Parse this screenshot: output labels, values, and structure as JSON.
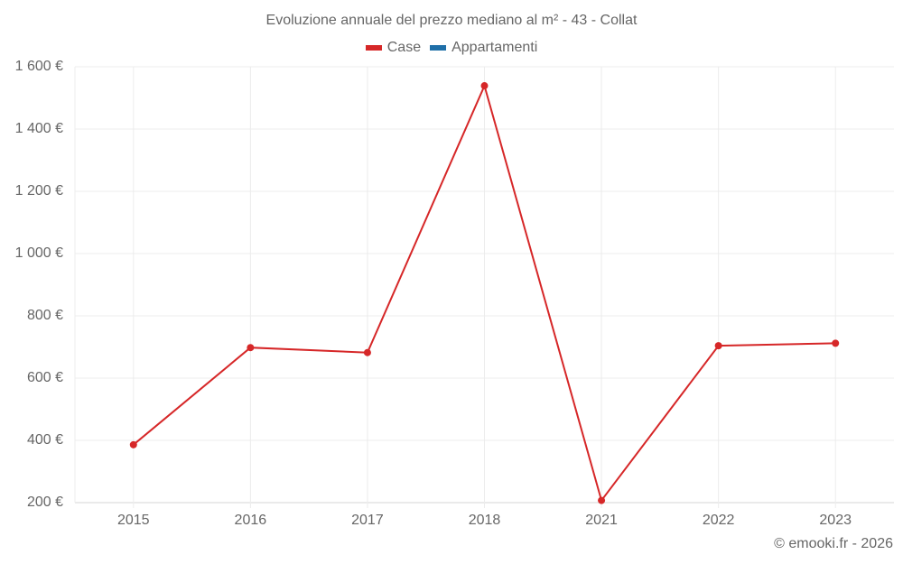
{
  "chart_data": {
    "type": "line",
    "title": "Evoluzione annuale del prezzo mediano al m² - 43 - Collat",
    "categories": [
      "2015",
      "2016",
      "2017",
      "2018",
      "2021",
      "2022",
      "2023"
    ],
    "series": [
      {
        "name": "Case",
        "color": "#d62728",
        "values": [
          386,
          698,
          682,
          1539,
          207,
          704,
          712
        ]
      },
      {
        "name": "Appartamenti",
        "color": "#1f6fa8",
        "values": []
      }
    ],
    "xlabel": "",
    "ylabel": "",
    "ylim": [
      200,
      1600
    ],
    "yticks": [
      200,
      400,
      600,
      800,
      1000,
      1200,
      1400,
      1600
    ],
    "ytick_labels": [
      "200 €",
      "400 €",
      "600 €",
      "800 €",
      "1 000 €",
      "1 200 €",
      "1 400 €",
      "1 600 €"
    ],
    "grid": true,
    "legend_position": "top"
  },
  "legend": [
    {
      "label": "Case",
      "color": "#d62728"
    },
    {
      "label": "Appartamenti",
      "color": "#1f6fa8"
    }
  ],
  "credit": "© emooki.fr - 2026"
}
